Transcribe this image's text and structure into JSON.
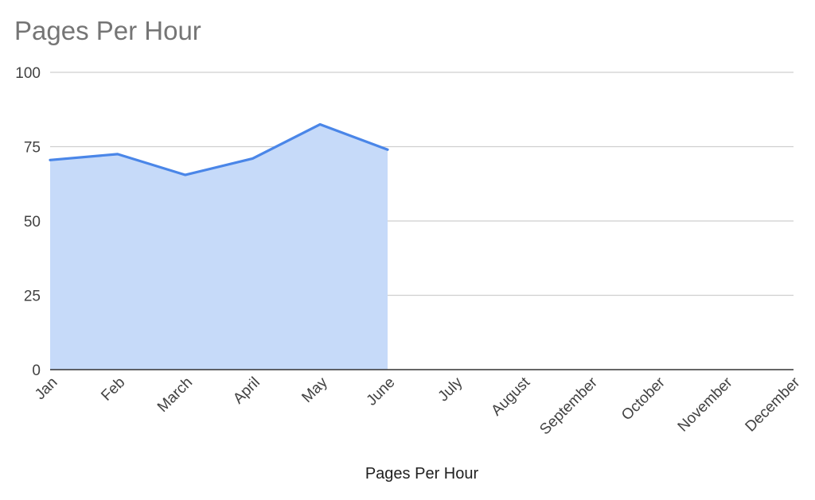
{
  "chart_data": {
    "type": "area",
    "title": "Pages Per Hour",
    "xlabel": "",
    "ylabel": "",
    "categories": [
      "Jan",
      "Feb",
      "March",
      "April",
      "May",
      "June",
      "July",
      "August",
      "September",
      "October",
      "November",
      "December"
    ],
    "series": [
      {
        "name": "Pages Per Hour",
        "values": [
          70.5,
          72.5,
          65.5,
          71,
          82.5,
          74,
          null,
          null,
          null,
          null,
          null,
          null
        ],
        "line_color": "#4a86e8",
        "fill_color": "#c6daf9"
      }
    ],
    "ylim": [
      0,
      100
    ],
    "yticks": [
      0,
      25,
      50,
      75,
      100
    ],
    "grid": true,
    "legend_position": "bottom"
  }
}
